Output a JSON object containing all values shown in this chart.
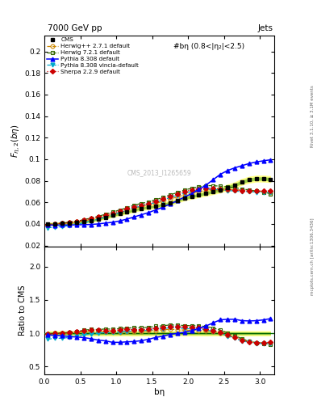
{
  "title_top": "7000 GeV pp",
  "title_right": "Jets",
  "annotation": "#bη (0.8<|η₂|<2.5)",
  "watermark": "CMS_2013_I1265659",
  "right_label_top": "Rivet 3.1.10, ≥ 3.1M events",
  "right_label_bot": "mcplots.cern.ch [arXiv:1306.3436]",
  "ylabel_main": "$F_{\\eta,2}(b\\eta)$",
  "ylabel_ratio": "Ratio to CMS",
  "xlabel": "bη",
  "xlim": [
    0,
    3.2
  ],
  "ylim_main": [
    0.019,
    0.215
  ],
  "ylim_ratio": [
    0.38,
    2.3
  ],
  "yticks_main": [
    0.02,
    0.04,
    0.06,
    0.08,
    0.1,
    0.12,
    0.14,
    0.16,
    0.18,
    0.2
  ],
  "yticks_ratio": [
    0.5,
    1.0,
    1.5,
    2.0
  ],
  "x_cms": [
    0.05,
    0.15,
    0.25,
    0.35,
    0.45,
    0.55,
    0.65,
    0.75,
    0.85,
    0.95,
    1.05,
    1.15,
    1.25,
    1.35,
    1.45,
    1.55,
    1.65,
    1.75,
    1.85,
    1.95,
    2.05,
    2.15,
    2.25,
    2.35,
    2.45,
    2.55,
    2.65,
    2.75,
    2.85,
    2.95,
    3.05,
    3.15
  ],
  "y_cms": [
    0.04,
    0.04,
    0.0405,
    0.041,
    0.0415,
    0.042,
    0.043,
    0.0445,
    0.046,
    0.048,
    0.0495,
    0.051,
    0.053,
    0.0545,
    0.0555,
    0.0565,
    0.058,
    0.0595,
    0.0615,
    0.064,
    0.0655,
    0.067,
    0.0685,
    0.07,
    0.0715,
    0.074,
    0.076,
    0.079,
    0.081,
    0.082,
    0.082,
    0.0815
  ],
  "y_cms_err": [
    0.0008,
    0.0008,
    0.0008,
    0.0008,
    0.0008,
    0.0008,
    0.0009,
    0.0009,
    0.0009,
    0.001,
    0.001,
    0.001,
    0.0011,
    0.0011,
    0.0011,
    0.0011,
    0.0012,
    0.0012,
    0.0012,
    0.0013,
    0.0013,
    0.0013,
    0.0014,
    0.0014,
    0.0014,
    0.0015,
    0.0015,
    0.0016,
    0.0016,
    0.0016,
    0.0016,
    0.0016
  ],
  "y_herwig1": [
    0.0395,
    0.04,
    0.0405,
    0.041,
    0.042,
    0.043,
    0.044,
    0.0455,
    0.047,
    0.049,
    0.0505,
    0.0525,
    0.0545,
    0.056,
    0.0575,
    0.059,
    0.061,
    0.063,
    0.065,
    0.067,
    0.0685,
    0.07,
    0.071,
    0.0715,
    0.0715,
    0.0715,
    0.0715,
    0.0715,
    0.071,
    0.0705,
    0.07,
    0.0695
  ],
  "y_herwig2": [
    0.0395,
    0.04,
    0.0408,
    0.0415,
    0.0425,
    0.044,
    0.0455,
    0.047,
    0.049,
    0.051,
    0.053,
    0.055,
    0.0575,
    0.059,
    0.0605,
    0.0625,
    0.0645,
    0.067,
    0.069,
    0.0715,
    0.073,
    0.0745,
    0.0755,
    0.0755,
    0.075,
    0.0745,
    0.0735,
    0.0725,
    0.0715,
    0.0705,
    0.0695,
    0.068
  ],
  "y_pythia1": [
    0.039,
    0.0388,
    0.039,
    0.039,
    0.0392,
    0.0393,
    0.0395,
    0.04,
    0.0408,
    0.0415,
    0.0428,
    0.0445,
    0.0465,
    0.0485,
    0.0505,
    0.053,
    0.0555,
    0.0585,
    0.0615,
    0.065,
    0.068,
    0.072,
    0.076,
    0.081,
    0.086,
    0.0895,
    0.092,
    0.094,
    0.096,
    0.0975,
    0.0985,
    0.0995
  ],
  "y_pythia2": [
    0.0365,
    0.037,
    0.0375,
    0.0385,
    0.0395,
    0.041,
    0.0425,
    0.0445,
    0.0465,
    0.0485,
    0.0505,
    0.0525,
    0.055,
    0.0565,
    0.058,
    0.06,
    0.062,
    0.0645,
    0.0665,
    0.0685,
    0.07,
    0.0715,
    0.072,
    0.072,
    0.0715,
    0.071,
    0.0705,
    0.07,
    0.07,
    0.0695,
    0.0695,
    0.069
  ],
  "y_sherpa": [
    0.0395,
    0.04,
    0.0408,
    0.0415,
    0.0425,
    0.0435,
    0.045,
    0.0465,
    0.048,
    0.05,
    0.052,
    0.054,
    0.056,
    0.0575,
    0.059,
    0.061,
    0.063,
    0.0655,
    0.0675,
    0.07,
    0.0715,
    0.0725,
    0.073,
    0.073,
    0.0725,
    0.072,
    0.0715,
    0.071,
    0.0705,
    0.0705,
    0.0705,
    0.0705
  ],
  "cms_color": "#000000",
  "herwig1_color": "#cc8800",
  "herwig2_color": "#336600",
  "pythia1_color": "#0000ff",
  "pythia2_color": "#00aacc",
  "sherpa_color": "#cc0000",
  "band_color_outer": "#ffff88",
  "band_color_inner": "#99cc44",
  "ratio_line_color": "#006600"
}
